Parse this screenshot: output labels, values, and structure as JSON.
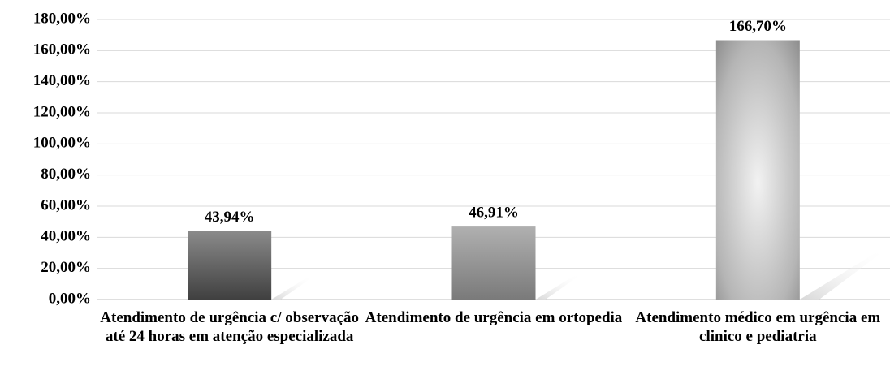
{
  "chart_data": {
    "type": "bar",
    "categories": [
      "Atendimento de urgência c/ observação até 24 horas em atenção especializada",
      "Atendimento de urgência em ortopedia",
      "Atendimento médico em urgência em clinico e pediatria"
    ],
    "values": [
      43.94,
      46.91,
      166.7
    ],
    "value_labels": [
      "43,94%",
      "46,91%",
      "166,70%"
    ],
    "ylim": [
      0,
      180
    ],
    "yticks": [
      {
        "value": 0,
        "label": "0,00%"
      },
      {
        "value": 20,
        "label": "20,00%"
      },
      {
        "value": 40,
        "label": "40,00%"
      },
      {
        "value": 60,
        "label": "60,00%"
      },
      {
        "value": 80,
        "label": "80,00%"
      },
      {
        "value": 100,
        "label": "100,00%"
      },
      {
        "value": 120,
        "label": "120,00%"
      },
      {
        "value": 140,
        "label": "140,00%"
      },
      {
        "value": 160,
        "label": "160,00%"
      },
      {
        "value": 180,
        "label": "180,00%"
      }
    ],
    "grid": true
  }
}
